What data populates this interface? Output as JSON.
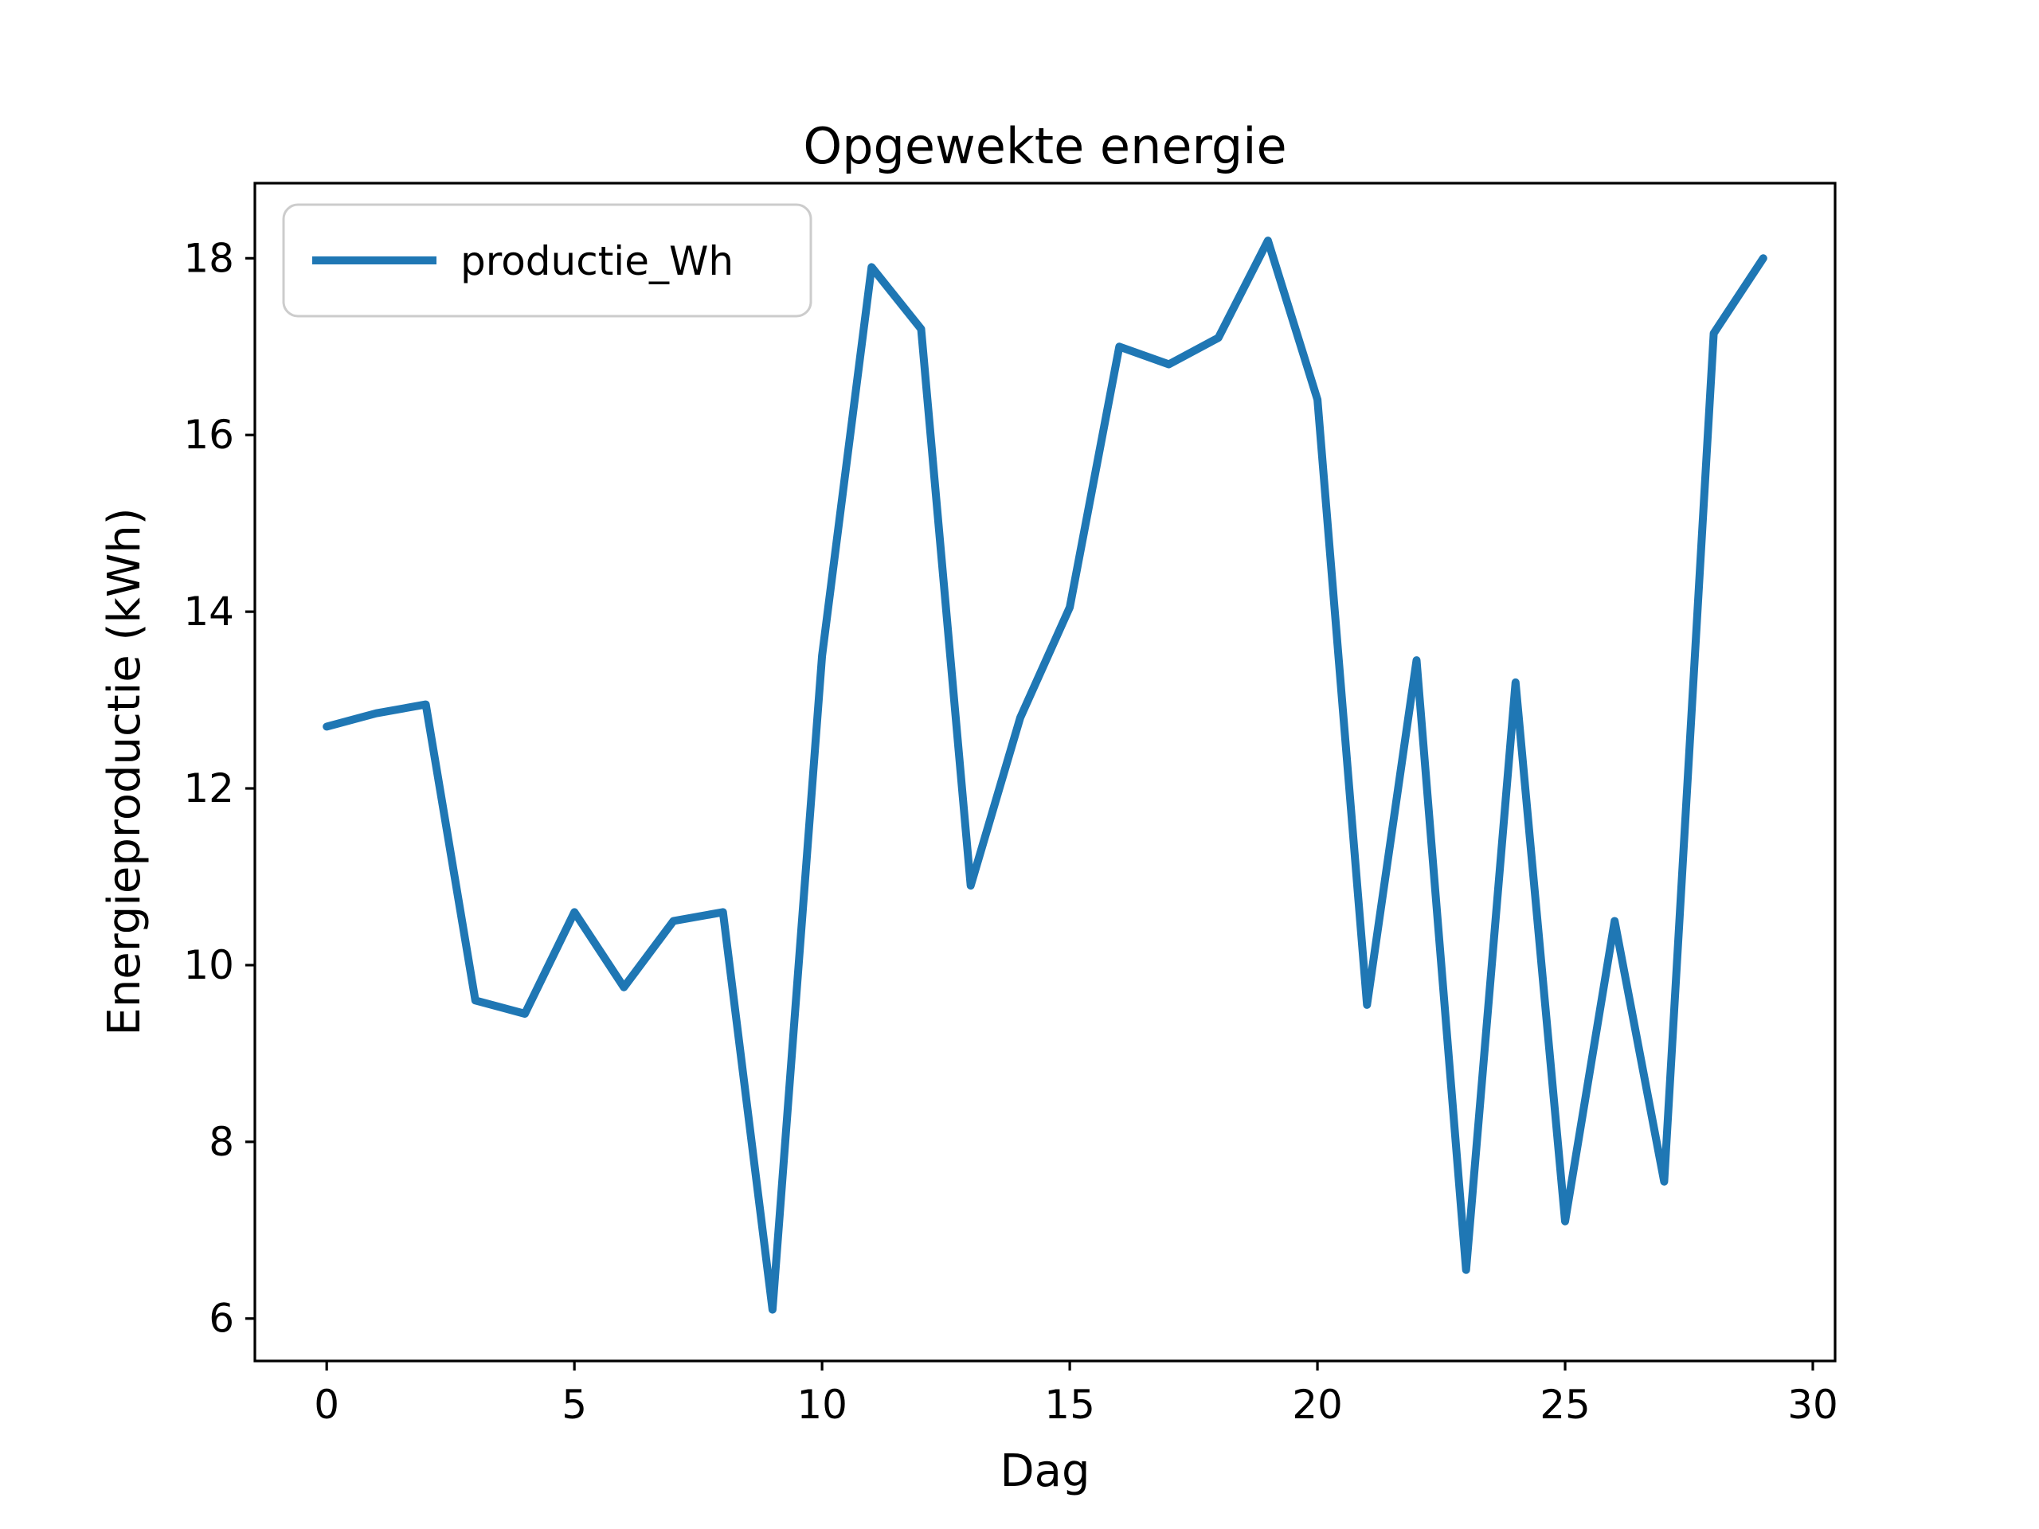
{
  "chart_data": {
    "type": "line",
    "title": "Opgewekte energie",
    "xlabel": "Dag",
    "ylabel": "Energieproductie (kWh)",
    "legend_label": "productie_Wh",
    "legend_position": "upper left",
    "grid": false,
    "line_color": "#1f77b4",
    "background_color": "#ffffff",
    "xlim": [
      -1.45,
      30.45
    ],
    "ylim": [
      5.52,
      18.85
    ],
    "xticks": [
      0,
      5,
      10,
      15,
      20,
      25,
      30
    ],
    "yticks": [
      6,
      8,
      10,
      12,
      14,
      16,
      18
    ],
    "series": [
      {
        "name": "productie_Wh",
        "x": [
          0,
          1,
          2,
          3,
          4,
          5,
          6,
          7,
          8,
          9,
          10,
          11,
          12,
          13,
          14,
          15,
          16,
          17,
          18,
          19,
          20,
          21,
          22,
          23,
          24,
          25,
          26,
          27,
          28,
          29
        ],
        "y": [
          12.7,
          12.85,
          12.95,
          9.6,
          9.45,
          10.6,
          9.75,
          10.5,
          10.6,
          6.1,
          13.5,
          17.9,
          17.2,
          10.9,
          12.8,
          14.05,
          17.0,
          16.8,
          17.1,
          18.2,
          16.4,
          9.55,
          13.45,
          6.55,
          13.2,
          7.1,
          10.5,
          7.55,
          17.15,
          18.0
        ]
      }
    ]
  }
}
